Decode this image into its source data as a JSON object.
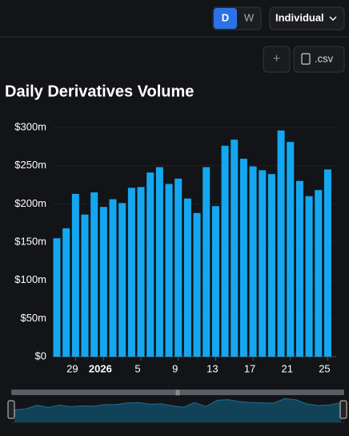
{
  "ui": {
    "d_button": "D",
    "w_button": "W",
    "dropdown": "Individual",
    "add_button": "+",
    "csv_button": ".csv"
  },
  "chart_data": {
    "type": "bar",
    "title": "Daily Derivatives Volume",
    "color": "#14a7f0",
    "categories": [
      null,
      null,
      "29",
      null,
      null,
      "2026",
      null,
      null,
      null,
      "5",
      null,
      null,
      null,
      "9",
      null,
      null,
      null,
      "13",
      null,
      null,
      null,
      "17",
      null,
      null,
      null,
      "21",
      null,
      null,
      null,
      "25"
    ],
    "values": [
      155,
      168,
      213,
      186,
      215,
      196,
      206,
      201,
      221,
      222,
      241,
      248,
      226,
      233,
      207,
      188,
      248,
      197,
      276,
      284,
      259,
      249,
      244,
      239,
      296,
      281,
      230,
      210,
      218,
      245
    ],
    "ylim": [
      0,
      300
    ],
    "yticks": [
      {
        "value": 0,
        "label": "$0"
      },
      {
        "value": 50,
        "label": "$50m"
      },
      {
        "value": 100,
        "label": "$100m"
      },
      {
        "value": 150,
        "label": "$150m"
      },
      {
        "value": 200,
        "label": "$200m"
      },
      {
        "value": 250,
        "label": "$250m"
      },
      {
        "value": 300,
        "label": "$300m"
      }
    ],
    "grid": true
  }
}
